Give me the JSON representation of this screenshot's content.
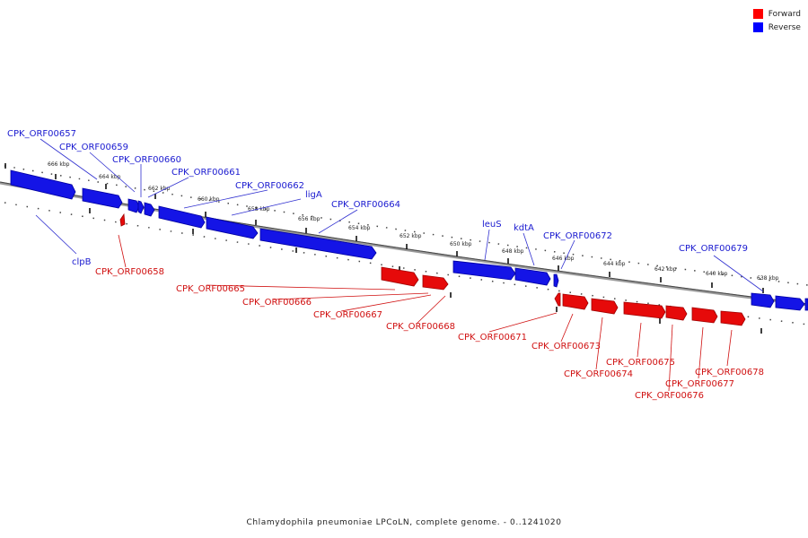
{
  "legend": {
    "forward_label": "Forward",
    "reverse_label": "Reverse",
    "forward_color": "#ff0000",
    "reverse_color": "#0000ff"
  },
  "caption": "Chlamydophila pneumoniae LPCoLN, complete genome. - 0..1241020",
  "ticks": [
    "666 kbp",
    "664 kbp",
    "662 kbp",
    "660 kbp",
    "658 kbp",
    "656 kbp",
    "654 kbp",
    "652 kbp",
    "650 kbp",
    "648 kbp",
    "646 kbp",
    "644 kbp",
    "642 kbp",
    "640 kbp",
    "638 kbp"
  ],
  "genes_reverse": [
    "CPK_ORF00657",
    "CPK_ORF00659",
    "CPK_ORF00660",
    "CPK_ORF00661",
    "CPK_ORF00662",
    "ligA",
    "CPK_ORF00664",
    "leuS",
    "kdtA",
    "CPK_ORF00672",
    "CPK_ORF00679",
    "clpB"
  ],
  "genes_forward": [
    "CPK_ORF00658",
    "CPK_ORF00665",
    "CPK_ORF00666",
    "CPK_ORF00667",
    "CPK_ORF00668",
    "CPK_ORF00671",
    "CPK_ORF00673",
    "CPK_ORF00674",
    "CPK_ORF00675",
    "CPK_ORF00676",
    "CPK_ORF00677",
    "CPK_ORF00678"
  ]
}
